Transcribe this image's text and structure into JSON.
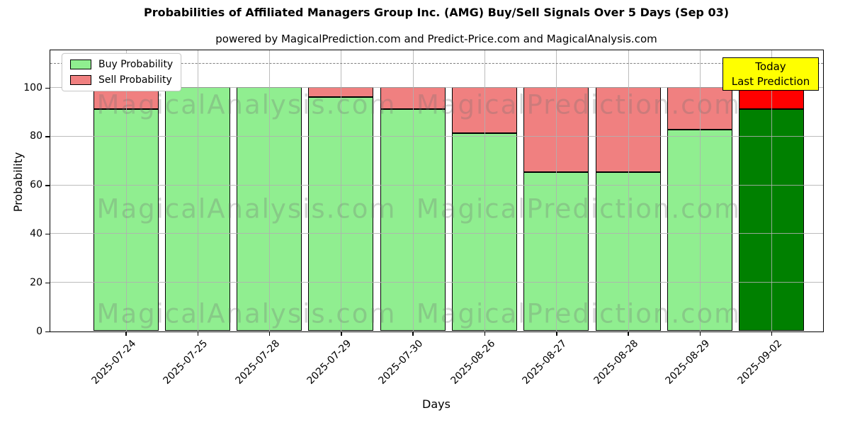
{
  "header": {
    "title": "Probabilities of Affiliated Managers Group Inc. (AMG) Buy/Sell Signals Over 5 Days (Sep 03)",
    "subtitle": "powered by MagicalPrediction.com and Predict-Price.com and MagicalAnalysis.com"
  },
  "axes": {
    "ylabel": "Probability",
    "xlabel": "Days",
    "yticks": [
      0,
      20,
      40,
      60,
      80,
      100
    ],
    "ylim": [
      0,
      115
    ],
    "dashed_line_y": 110,
    "grid": true
  },
  "legend": {
    "items": [
      {
        "label": "Buy Probability",
        "color": "#90EE90"
      },
      {
        "label": "Sell Probability",
        "color": "#F08080"
      }
    ],
    "position": "upper left"
  },
  "annotation": {
    "line1": "Today",
    "line2": "Last Prediction",
    "bg_color": "#FFFF00"
  },
  "watermarks": {
    "left_text": "MagicalAnalysis.com",
    "right_text": "MagicalPrediction.com"
  },
  "chart_data": {
    "type": "bar",
    "stacked": true,
    "title": "Probabilities of Affiliated Managers Group Inc. (AMG) Buy/Sell Signals Over 5 Days (Sep 03)",
    "xlabel": "Days",
    "ylabel": "Probability",
    "ylim": [
      0,
      115
    ],
    "yticks": [
      0,
      20,
      40,
      60,
      80,
      100
    ],
    "grid": true,
    "legend_position": "upper left",
    "dashed_line_y": 110,
    "categories": [
      "2025-07-24",
      "2025-07-25",
      "2025-07-28",
      "2025-07-29",
      "2025-07-30",
      "2025-08-26",
      "2025-08-27",
      "2025-08-28",
      "2025-08-29",
      "2025-09-02"
    ],
    "series": [
      {
        "name": "Buy Probability",
        "color": "#90EE90",
        "values": [
          91,
          100,
          100,
          96,
          91,
          81,
          65,
          65,
          82.5,
          91
        ]
      },
      {
        "name": "Sell Probability",
        "color": "#F08080",
        "values": [
          9,
          0,
          0,
          4,
          9,
          19,
          35,
          35,
          17.5,
          9
        ]
      }
    ],
    "today_index": 9,
    "today_colors": {
      "buy": "#008000",
      "sell": "#FF0000"
    }
  }
}
